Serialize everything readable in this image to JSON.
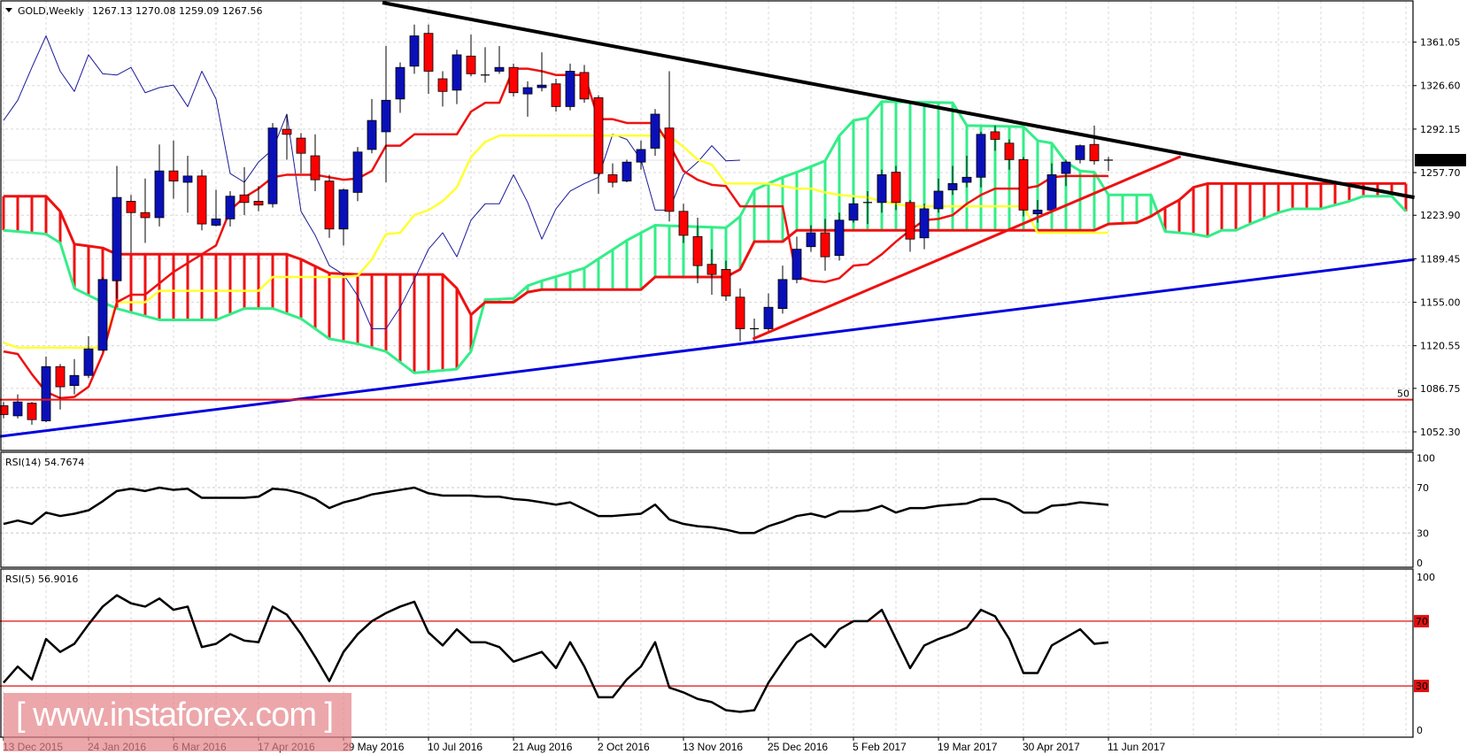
{
  "header": {
    "symbol_timeframe": "GOLD,Weekly",
    "ohlc": "1267.13 1270.08 1259.09 1267.56"
  },
  "watermark": "[ www.instaforex.com ]",
  "colors": {
    "bull": "#0a10b8",
    "bear": "#ff0000",
    "tenkan": "#ee1111",
    "kijun": "#ffff33",
    "chikou": "#1a1a9a",
    "span_a": "#33ee88",
    "span_b": "#ee1111",
    "trend_black": "#000000",
    "trend_blue": "#0000dd",
    "trend_red": "#ee1111"
  },
  "chart_data": [
    {
      "type": "candlestick",
      "title": "GOLD,Weekly",
      "price_ticks": [
        "1361.05",
        "1326.60",
        "1292.15",
        "1257.70",
        "1223.90",
        "1189.45",
        "1155.00",
        "1120.55",
        "1086.75",
        "1052.30"
      ],
      "current_price": "1267.56",
      "ylim": [
        1046,
        1395
      ],
      "date_labels": [
        "13 Dec 2015",
        "24 Jan 2016",
        "6 Mar 2016",
        "17 Apr 2016",
        "29 May 2016",
        "10 Jul 2016",
        "21 Aug 2016",
        "2 Oct 2016",
        "13 Nov 2016",
        "25 Dec 2016",
        "5 Feb 2017",
        "19 Mar 2017",
        "30 Apr 2017",
        "11 Jun 2017"
      ],
      "grid": true,
      "ohlc": [
        [
          1073,
          1076,
          1063,
          1066
        ],
        [
          1065,
          1082,
          1063,
          1076
        ],
        [
          1075,
          1076,
          1058,
          1062
        ],
        [
          1061,
          1112,
          1060,
          1104
        ],
        [
          1104,
          1106,
          1070,
          1088
        ],
        [
          1089,
          1110,
          1082,
          1097
        ],
        [
          1097,
          1128,
          1095,
          1118
        ],
        [
          1117,
          1175,
          1116,
          1173
        ],
        [
          1172,
          1263,
          1158,
          1238
        ],
        [
          1235,
          1240,
          1194,
          1226
        ],
        [
          1226,
          1253,
          1202,
          1222
        ],
        [
          1222,
          1280,
          1215,
          1259
        ],
        [
          1259,
          1283,
          1237,
          1251
        ],
        [
          1250,
          1271,
          1226,
          1255
        ],
        [
          1255,
          1260,
          1212,
          1217
        ],
        [
          1216,
          1244,
          1215,
          1221
        ],
        [
          1221,
          1243,
          1215,
          1239
        ],
        [
          1240,
          1262,
          1224,
          1234
        ],
        [
          1235,
          1247,
          1227,
          1232
        ],
        [
          1233,
          1297,
          1230,
          1293
        ],
        [
          1292,
          1304,
          1268,
          1288
        ],
        [
          1285,
          1289,
          1257,
          1273
        ],
        [
          1271,
          1288,
          1243,
          1252
        ],
        [
          1251,
          1256,
          1206,
          1213
        ],
        [
          1213,
          1245,
          1200,
          1244
        ],
        [
          1242,
          1278,
          1235,
          1274
        ],
        [
          1276,
          1316,
          1273,
          1299
        ],
        [
          1290,
          1358,
          1250,
          1315
        ],
        [
          1316,
          1345,
          1305,
          1341
        ],
        [
          1342,
          1375,
          1336,
          1366
        ],
        [
          1368,
          1375,
          1320,
          1338
        ],
        [
          1332,
          1338,
          1310,
          1322
        ],
        [
          1323,
          1355,
          1312,
          1351
        ],
        [
          1350,
          1367,
          1334,
          1336
        ],
        [
          1335,
          1357,
          1329,
          1335
        ],
        [
          1338,
          1358,
          1336,
          1341
        ],
        [
          1341,
          1344,
          1318,
          1321
        ],
        [
          1320,
          1330,
          1302,
          1325
        ],
        [
          1325,
          1353,
          1322,
          1327
        ],
        [
          1328,
          1332,
          1306,
          1310
        ],
        [
          1310,
          1344,
          1307,
          1338
        ],
        [
          1337,
          1343,
          1313,
          1316
        ],
        [
          1317,
          1319,
          1241,
          1257
        ],
        [
          1256,
          1265,
          1246,
          1250
        ],
        [
          1251,
          1268,
          1250,
          1266
        ],
        [
          1266,
          1283,
          1260,
          1276
        ],
        [
          1277,
          1308,
          1271,
          1304
        ],
        [
          1293,
          1338,
          1219,
          1227
        ],
        [
          1227,
          1233,
          1202,
          1208
        ],
        [
          1207,
          1222,
          1170,
          1184
        ],
        [
          1185,
          1197,
          1161,
          1177
        ],
        [
          1181,
          1188,
          1156,
          1160
        ],
        [
          1159,
          1166,
          1124,
          1134
        ],
        [
          1134,
          1142,
          1124,
          1134
        ],
        [
          1134,
          1162,
          1131,
          1151
        ],
        [
          1150,
          1184,
          1146,
          1173
        ],
        [
          1173,
          1207,
          1170,
          1197
        ],
        [
          1199,
          1216,
          1195,
          1210
        ],
        [
          1210,
          1221,
          1180,
          1191
        ],
        [
          1192,
          1226,
          1188,
          1220
        ],
        [
          1220,
          1238,
          1218,
          1233
        ],
        [
          1234,
          1243,
          1217,
          1233
        ],
        [
          1234,
          1260,
          1226,
          1256
        ],
        [
          1258,
          1263,
          1228,
          1234
        ],
        [
          1234,
          1236,
          1195,
          1205
        ],
        [
          1206,
          1233,
          1197,
          1229
        ],
        [
          1229,
          1253,
          1226,
          1243
        ],
        [
          1244,
          1263,
          1240,
          1249
        ],
        [
          1250,
          1271,
          1246,
          1254
        ],
        [
          1254,
          1290,
          1246,
          1288
        ],
        [
          1290,
          1295,
          1275,
          1284
        ],
        [
          1281,
          1284,
          1260,
          1268
        ],
        [
          1268,
          1270,
          1223,
          1228
        ],
        [
          1225,
          1236,
          1218,
          1228
        ],
        [
          1228,
          1265,
          1226,
          1256
        ],
        [
          1257,
          1268,
          1247,
          1266
        ],
        [
          1268,
          1280,
          1265,
          1279
        ],
        [
          1280,
          1295,
          1264,
          1267
        ],
        [
          1267.13,
          1270.08,
          1259.09,
          1267.56
        ]
      ],
      "tenkan": [
        1116,
        1114,
        1098,
        1084,
        1079,
        1080,
        1088,
        1114,
        1155,
        1161,
        1161,
        1170,
        1179,
        1186,
        1193,
        1200,
        1228,
        1238,
        1245,
        1254,
        1256,
        1256,
        1256,
        1254,
        1252,
        1253,
        1259,
        1279,
        1279,
        1288,
        1288,
        1288,
        1288,
        1306,
        1313,
        1313,
        1340,
        1340,
        1338,
        1335,
        1335,
        1335,
        1300,
        1300,
        1297,
        1297,
        1297,
        1280,
        1259,
        1252,
        1248,
        1247,
        1231,
        1231,
        1231,
        1231,
        1175,
        1172,
        1171,
        1174,
        1184,
        1185,
        1193,
        1203,
        1212,
        1220,
        1221,
        1224,
        1233,
        1240,
        1245,
        1245,
        1245,
        1247,
        1254,
        1255,
        1255,
        1255,
        1255
      ],
      "kijun": [
        1123,
        1119,
        1119,
        1119,
        1119,
        1119,
        1119,
        1119,
        1155,
        1155,
        1155,
        1164,
        1164,
        1164,
        1164,
        1164,
        1164,
        1164,
        1164,
        1175,
        1175,
        1175,
        1175,
        1175,
        1175,
        1176,
        1189,
        1209,
        1210,
        1224,
        1228,
        1235,
        1246,
        1270,
        1282,
        1287,
        1287,
        1287,
        1287,
        1287,
        1287,
        1287,
        1287,
        1287,
        1287,
        1287,
        1287,
        1287,
        1278,
        1268,
        1264,
        1249,
        1249,
        1249,
        1249,
        1247,
        1245,
        1245,
        1242,
        1240,
        1239,
        1238,
        1235,
        1233,
        1231,
        1231,
        1231,
        1231,
        1231,
        1231,
        1231,
        1231,
        1231,
        1210,
        1210,
        1210,
        1210,
        1210,
        1210
      ],
      "senkou_a_points": [
        [
          0,
          1212
        ],
        [
          3,
          1209
        ],
        [
          4,
          1202
        ],
        [
          5,
          1166
        ],
        [
          7,
          1155
        ],
        [
          8,
          1150
        ],
        [
          11,
          1141
        ],
        [
          15,
          1141
        ],
        [
          17,
          1150
        ],
        [
          19,
          1150
        ],
        [
          21,
          1142
        ],
        [
          23,
          1126
        ],
        [
          25,
          1122
        ],
        [
          27,
          1116
        ],
        [
          29,
          1099
        ],
        [
          32,
          1102
        ],
        [
          33,
          1116
        ],
        [
          34,
          1157
        ],
        [
          36,
          1158
        ],
        [
          37,
          1168
        ],
        [
          38,
          1172
        ],
        [
          41,
          1182
        ],
        [
          44,
          1204
        ],
        [
          46,
          1216
        ],
        [
          51,
          1214
        ],
        [
          52,
          1223
        ],
        [
          53,
          1244
        ],
        [
          55,
          1254
        ],
        [
          56,
          1258
        ],
        [
          58,
          1267
        ],
        [
          59,
          1287
        ],
        [
          60,
          1299
        ],
        [
          61,
          1301
        ],
        [
          62,
          1314
        ],
        [
          67,
          1313
        ],
        [
          68,
          1295
        ],
        [
          72,
          1294
        ],
        [
          73,
          1283
        ],
        [
          74,
          1281
        ],
        [
          75,
          1266
        ],
        [
          76,
          1259
        ],
        [
          77,
          1258
        ],
        [
          78,
          1240
        ],
        [
          81,
          1240
        ],
        [
          82,
          1211
        ],
        [
          84,
          1209
        ],
        [
          85,
          1207
        ],
        [
          86,
          1212
        ],
        [
          87,
          1212
        ],
        [
          88,
          1217
        ],
        [
          90,
          1226
        ],
        [
          91,
          1229
        ],
        [
          93,
          1229
        ],
        [
          95,
          1235
        ],
        [
          96,
          1239
        ],
        [
          98,
          1239
        ],
        [
          99,
          1227
        ]
      ],
      "senkou_b_points": [
        [
          0,
          1239
        ],
        [
          3,
          1239
        ],
        [
          4,
          1227
        ],
        [
          5,
          1201
        ],
        [
          7,
          1198
        ],
        [
          8,
          1193
        ],
        [
          20,
          1193
        ],
        [
          21,
          1189
        ],
        [
          23,
          1178
        ],
        [
          25,
          1177
        ],
        [
          31,
          1177
        ],
        [
          32,
          1166
        ],
        [
          33,
          1145
        ],
        [
          34,
          1155
        ],
        [
          36,
          1155
        ],
        [
          37,
          1163
        ],
        [
          38,
          1165
        ],
        [
          45,
          1165
        ],
        [
          46,
          1175
        ],
        [
          51,
          1175
        ],
        [
          52,
          1181
        ],
        [
          53,
          1203
        ],
        [
          55,
          1203
        ],
        [
          56,
          1212
        ],
        [
          77,
          1212
        ],
        [
          78,
          1217
        ],
        [
          80,
          1218
        ],
        [
          81,
          1223
        ],
        [
          82,
          1230
        ],
        [
          83,
          1236
        ],
        [
          84,
          1246
        ],
        [
          85,
          1249
        ],
        [
          99,
          1249
        ]
      ],
      "chikou_shift": 26,
      "trendlines": [
        {
          "color": "black",
          "from": [
            26.75,
            1392.3
          ],
          "to": [
            99.6,
            1238
          ]
        },
        {
          "color": "blue",
          "from": [
            -0.25,
            1048.7
          ],
          "to": [
            99.6,
            1188.8
          ]
        },
        {
          "color": "red",
          "from": [
            52.9,
            1125.9
          ],
          "to": [
            83.1,
            1270.5
          ]
        }
      ],
      "fib_level": {
        "label": "50",
        "price": 1077.8
      }
    },
    {
      "type": "line",
      "title": "RSI(14) 54.7674",
      "ticks": [
        "100",
        "70",
        "30",
        "0"
      ],
      "levels": [
        70,
        30
      ],
      "ylim": [
        0,
        100
      ],
      "values": [
        38,
        41,
        38,
        48,
        45,
        47,
        50,
        58,
        67,
        69,
        67,
        70,
        68,
        69,
        61,
        61,
        61,
        61,
        62,
        69,
        68,
        65,
        60,
        52,
        57,
        60,
        64,
        66,
        68,
        70,
        65,
        63,
        63,
        63,
        62,
        62,
        60,
        59,
        57,
        55,
        57,
        51,
        45,
        45,
        46,
        47,
        55,
        42,
        38,
        36,
        35,
        33,
        30,
        30,
        36,
        40,
        45,
        47,
        44,
        49,
        49,
        50,
        54,
        48,
        52,
        52,
        54,
        55,
        56,
        60,
        60,
        56,
        48,
        48,
        54,
        55,
        57,
        56,
        54.77
      ]
    },
    {
      "type": "line",
      "title": "RSI(5) 56.9016",
      "ticks": [
        "100",
        "70",
        "30",
        "0"
      ],
      "levels": [
        70,
        30
      ],
      "level_labels": [
        "70",
        "30"
      ],
      "ylim": [
        0,
        100
      ],
      "values": [
        32,
        42,
        34,
        59,
        51,
        56,
        68,
        79,
        86,
        81,
        79,
        84,
        77,
        79,
        54,
        56,
        62,
        58,
        57,
        79,
        74,
        62,
        48,
        33,
        51,
        62,
        70,
        75,
        79,
        82,
        63,
        55,
        65,
        57,
        57,
        54,
        45,
        48,
        51,
        41,
        57,
        42,
        23,
        23,
        34,
        42,
        57,
        29,
        26,
        22,
        20,
        15,
        14,
        15,
        32,
        45,
        57,
        62,
        54,
        65,
        70,
        70,
        77,
        59,
        41,
        55,
        59,
        62,
        66,
        77,
        73,
        59,
        38,
        38,
        55,
        60,
        65,
        56,
        56.9
      ]
    }
  ]
}
